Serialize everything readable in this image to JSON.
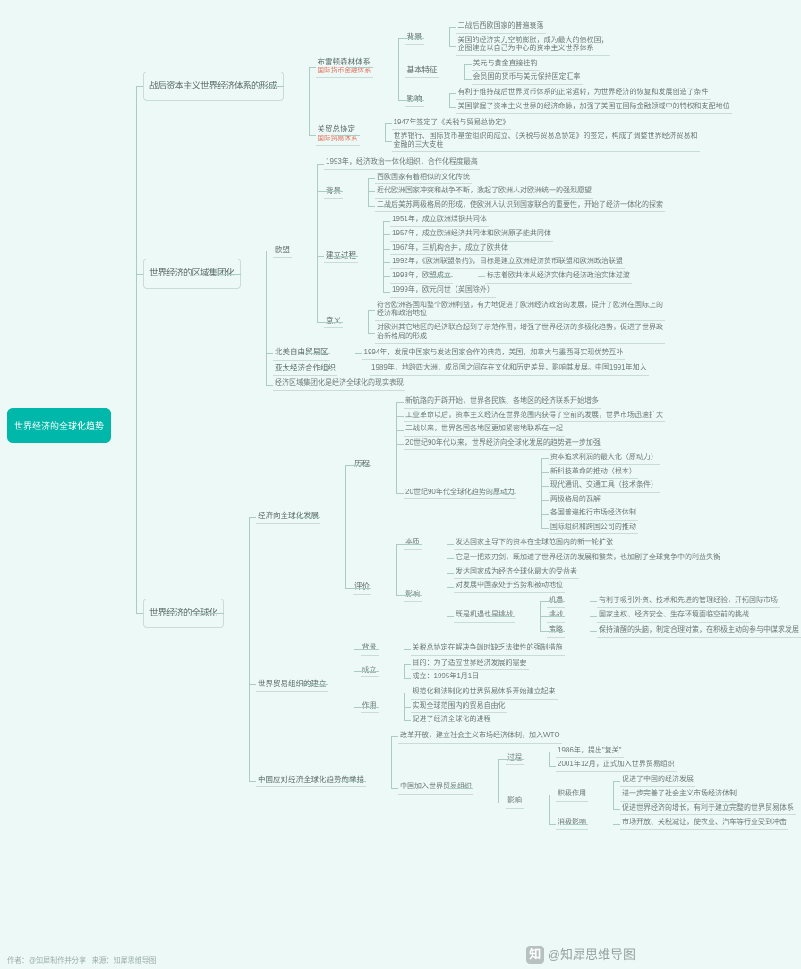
{
  "colors": {
    "bg": "#edf9f7",
    "root": "#00b8a9",
    "line": "#aaccc5",
    "accent": "#e3745f"
  },
  "root": "世界经济的全球化趋势",
  "s1": {
    "title": "战后资本主义世界经济体系的形成",
    "b1": {
      "t1": "布雷顿森林体系",
      "t2": "国际货币金融体系",
      "bg": {
        "t": "背景",
        "a": "二战后西欧国家的普遍衰落",
        "b": "美国的经济实力空前膨胀，成为最大的债权国；\n企图建立以自己为中心的资本主义世界体系"
      },
      "jb": {
        "t": "基本特征",
        "a": "美元与黄金直接挂钩",
        "b": "会员国的货币与美元保持固定汇率"
      },
      "yx": {
        "t": "影响",
        "a": "有利于维持战后世界货币体系的正常运转，为世界经济的恢复和发展创造了条件",
        "b": "美国掌握了资本主义世界的经济命脉，加强了美国在国际金融领域中的特权和支配地位"
      }
    },
    "b2": {
      "t1": "关贸总协定",
      "t2": "国际贸易体系",
      "a": "1947年签定了《关税与贸易总协定》",
      "b": "世界银行、国际货币基金组织的成立、《关税与贸易总协定》的签定，构成了调整世界经济贸易和\n金融的三大支柱"
    }
  },
  "s2": {
    "title": "世界经济的区域集团化",
    "eu": {
      "t": "欧盟",
      "a": "1993年，经济政治一体化组织，合作化程度最高",
      "bg": {
        "t": "背景",
        "a": "西欧国家有着相似的文化传统",
        "b": "近代欧洲国家冲突和战争不断，激起了欧洲人对欧洲统一的强烈愿望",
        "c": "二战后美苏两极格局的形成，使欧洲人认识到国家联合的重要性，开始了经济一体化的探索"
      },
      "jl": {
        "t": "建立过程",
        "a": "1951年，成立欧洲煤钢共同体",
        "b": "1957年，成立欧洲经济共同体和欧洲原子能共同体",
        "c": "1967年，三机构合并，成立了欧共体",
        "d": "1992年，《欧洲联盟条约》，目标是建立欧洲经济货币联盟和欧洲政治联盟",
        "e": "1993年，欧盟成立",
        "e2": "标志着欧共体从经济实体向经济政治实体过渡",
        "f": "1999年，欧元问世（英国除外）"
      },
      "yy": {
        "t": "意义",
        "a": "符合欧洲各国和整个欧洲利益，有力地促进了欧洲经济政治的发展，提升了欧洲在国际上的\n经济和政治地位",
        "b": "对欧洲其它地区的经济联合起到了示范作用，增强了世界经济的多极化趋势，促进了世界政\n治新格局的形成"
      }
    },
    "naf": {
      "t": "北美自由贸易区",
      "a": "1994年，发展中国家与发达国家合作的典范，美国、加拿大与墨西哥实现优势互补"
    },
    "apec": {
      "t": "亚太经济合作组织",
      "a": "1989年，地跨四大洲，成员国之间存在文化和历史差异，影响其发展。中国1991年加入"
    },
    "note": "经济区域集团化是经济全球化的现实表现"
  },
  "s3": {
    "title": "世界经济的全球化",
    "a": {
      "t": "经济向全球化发展",
      "lc": {
        "t": "历程",
        "a": "新航路的开辟开始，世界各民族、各地区的经济联系开始增多",
        "b": "工业革命以后，资本主义经济在世界范围内获得了空前的发展，世界市场迅速扩大",
        "c": "二战以来，世界各国各地区更加紧密地联系在一起",
        "d": "20世纪90年代以来，世界经济向全球化发展的趋势进一步加强",
        "e": {
          "t": "20世纪90年代全球化趋势的原动力",
          "a": "资本追求利润的最大化（原动力）",
          "b": "新科技革命的推动（根本）",
          "c": "现代通讯、交通工具（技术条件）",
          "d": "两极格局的瓦解",
          "e": "各国普遍推行市场经济体制",
          "f": "国际组织和跨国公司的推动"
        }
      },
      "pj": {
        "t": "评价",
        "bz": {
          "t": "本质",
          "a": "发达国家主导下的资本在全球范围内的新一轮扩张"
        },
        "yx": {
          "t": "影响",
          "a": "它是一把双刃剑，既加速了世界经济的发展和繁荣，也加剧了全球竞争中的利益失衡",
          "b": "发达国家成为经济全球化最大的受益者",
          "c": "对发展中国家处于劣势和被动地位",
          "d": {
            "t": "既是机遇也是挑战",
            "jy": {
              "t": "机遇",
              "a": "有利于吸引外资、技术和先进的管理经验，开拓国际市场"
            },
            "tz": {
              "t": "挑战",
              "a": "国家主权、经济安全、生存环境面临空前的挑战"
            },
            "cl": {
              "t": "策略",
              "a": "保持清醒的头脑，制定合理对策，在积极主动的参与中谋求发展"
            }
          }
        }
      }
    },
    "wto": {
      "t": "世界贸易组织的建立",
      "bg": {
        "t": "背景",
        "a": "关税总协定在解决争端时缺乏法律性的强制措施"
      },
      "cl": {
        "t": "成立",
        "a": "目的：为了适应世界经济发展的需要",
        "b": "成立：1995年1月1日"
      },
      "zy": {
        "t": "作用",
        "a": "规范化和法制化的世界贸易体系开始建立起来",
        "b": "实现全球范围内的贸易自由化",
        "c": "促进了经济全球化的进程"
      }
    },
    "cn": {
      "t": "中国应对经济全球化趋势的举措",
      "a": "改革开放，建立社会主义市场经济体制，加入WTO",
      "b": {
        "t": "中国加入世界贸易组织",
        "gc": {
          "t": "过程",
          "a": "1986年，提出\"复关\"",
          "b": "2001年12月，正式加入世界贸易组织"
        },
        "yx": {
          "t": "影响",
          "jj": {
            "t": "积极作用",
            "a": "促进了中国的经济发展",
            "b": "进一步完善了社会主义市场经济体制",
            "c": "促进世界经济的增长，有利于建立完整的世界贸易体系"
          },
          "xj": {
            "t": "消极影响",
            "a": "市场开放、关税减让，使农业、汽车等行业受到冲击"
          }
        }
      }
    }
  },
  "credit": "作者：@知犀制作并分享  |  来源：知犀思维导图",
  "watermark": "@知犀思维导图"
}
